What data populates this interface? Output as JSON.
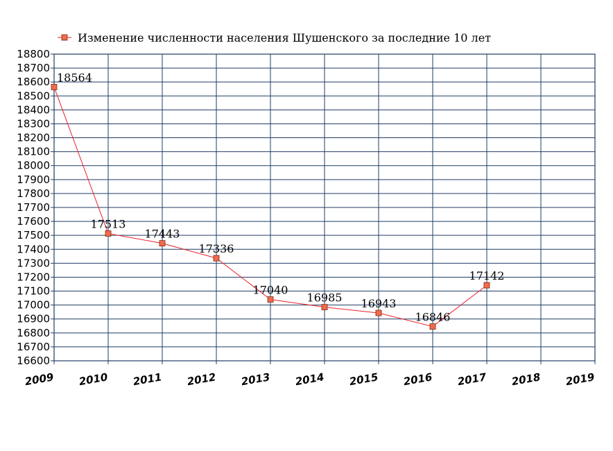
{
  "chart_data": {
    "type": "line",
    "legend": {
      "placement": "top",
      "entries": [
        "Изменение численности населения Шушенского за последние 10 лет"
      ]
    },
    "x": [
      "2009",
      "2010",
      "2011",
      "2012",
      "2013",
      "2014",
      "2015",
      "2016",
      "2017",
      "2018",
      "2019"
    ],
    "series": [
      {
        "name": "Изменение численности населения Шушенского за последние 10 лет",
        "color": "#f26b4a",
        "line_color": "#e8212b",
        "x": [
          "2009",
          "2010",
          "2011",
          "2012",
          "2013",
          "2014",
          "2015",
          "2016",
          "2017"
        ],
        "values": [
          18564,
          17513,
          17443,
          17336,
          17040,
          16985,
          16943,
          16846,
          17142
        ],
        "labels": [
          "18564",
          "17513",
          "17443",
          "17336",
          "17040",
          "16985",
          "16943",
          "16846",
          "17142"
        ]
      }
    ],
    "ylim": [
      16600,
      18800
    ],
    "ytick_step": 100,
    "yticks": [
      "16600",
      "16700",
      "16800",
      "16900",
      "17000",
      "17100",
      "17200",
      "17300",
      "17400",
      "17500",
      "17600",
      "17700",
      "17800",
      "17900",
      "18000",
      "18100",
      "18200",
      "18300",
      "18400",
      "18500",
      "18600",
      "18700",
      "18800"
    ],
    "grid": true,
    "grid_color": "#1f3b63"
  }
}
